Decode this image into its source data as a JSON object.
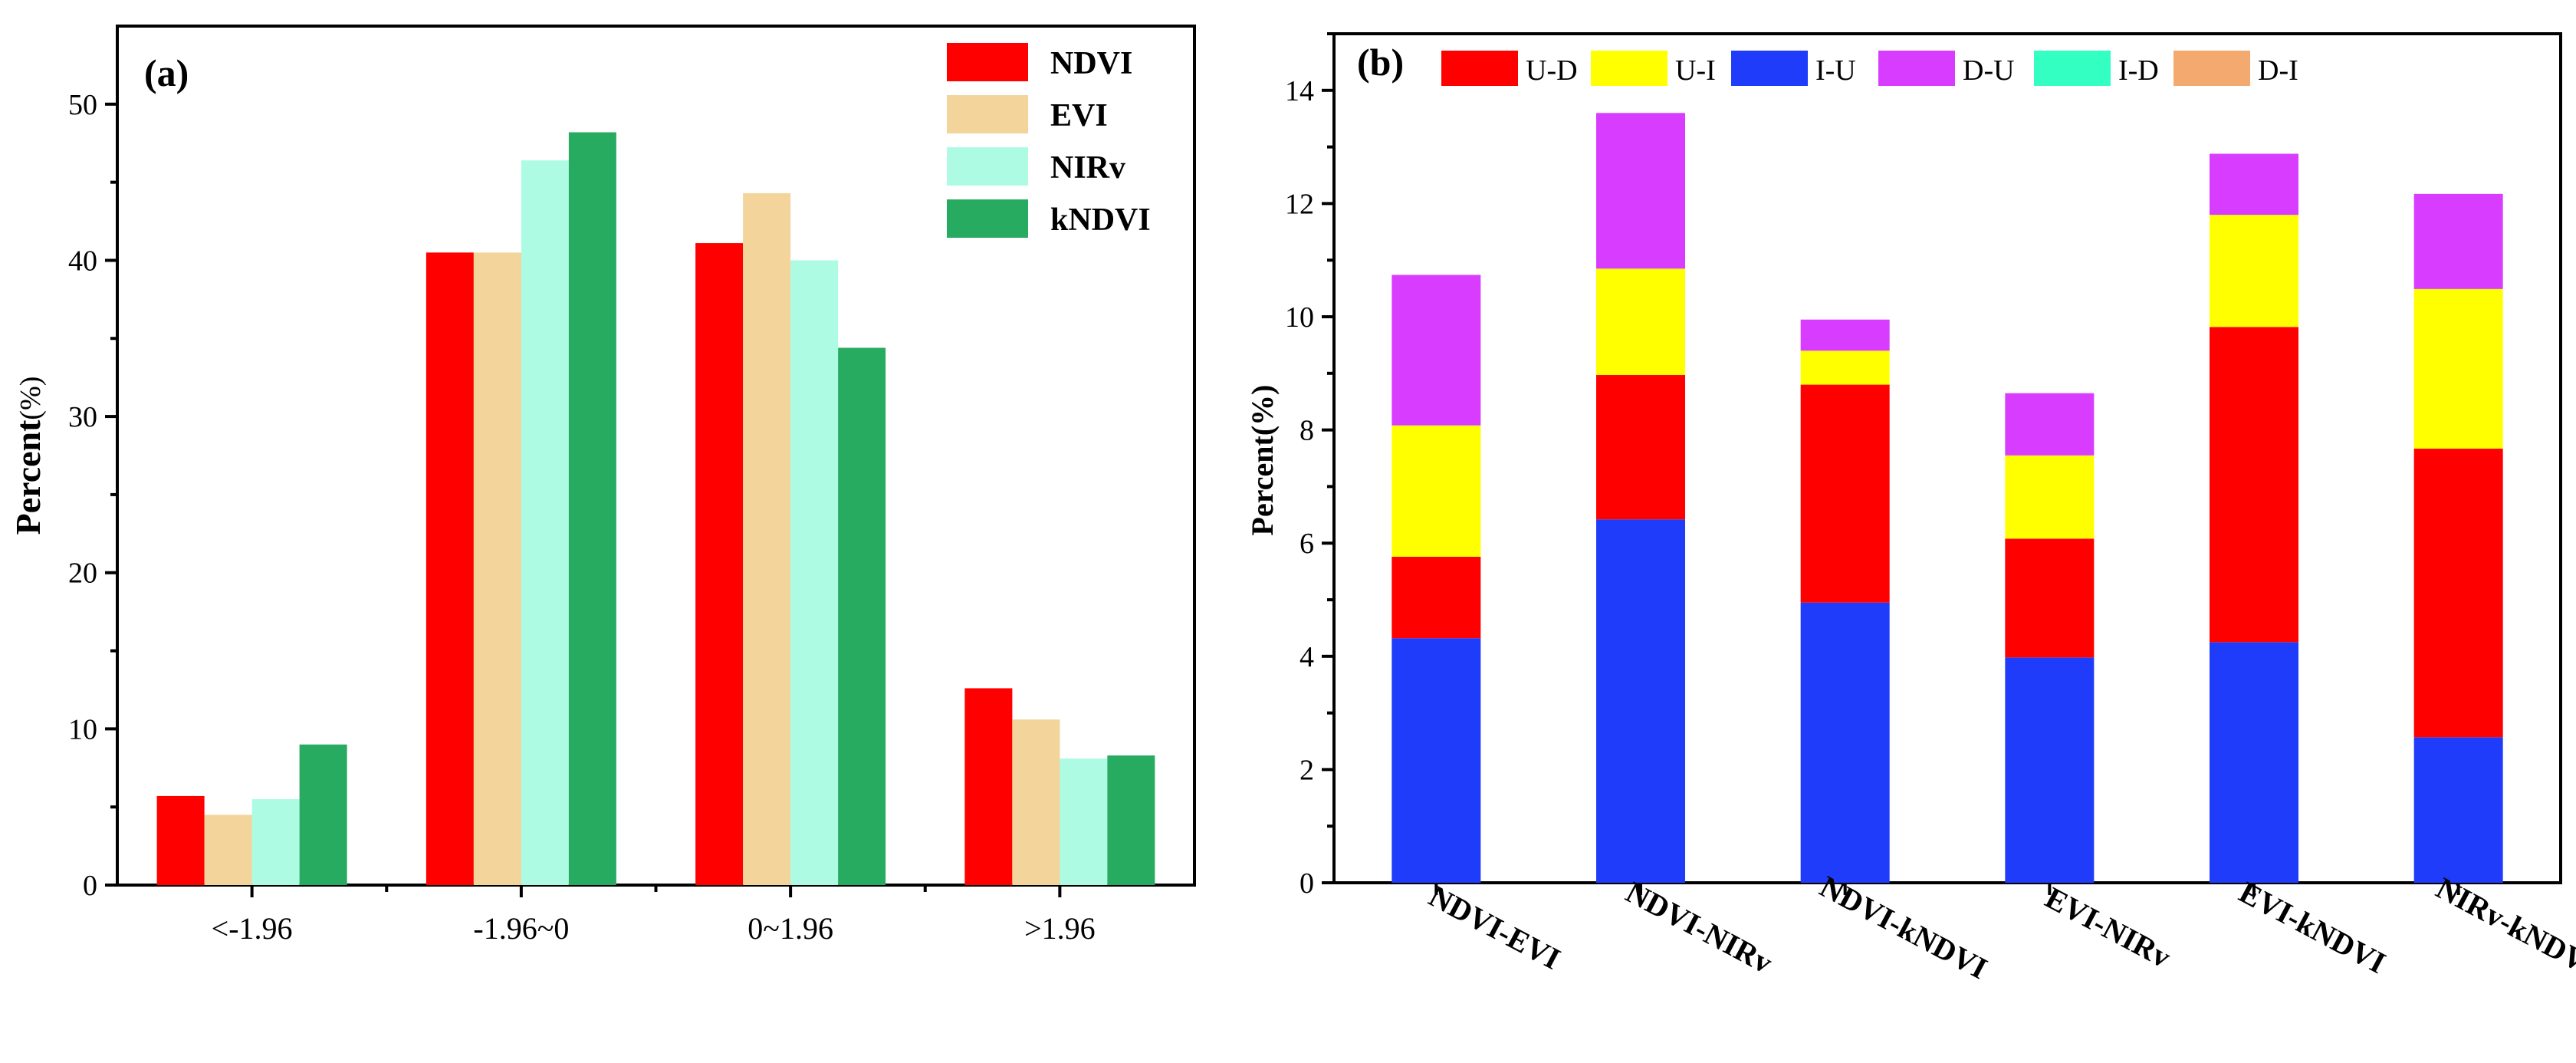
{
  "chart_data": [
    {
      "type": "bar",
      "panel_label": "(a)",
      "ylabel": "Percent",
      "ylabel_unit": "(%)",
      "xlabel": "",
      "ylim": [
        0,
        55
      ],
      "yticks": [
        "0",
        "10",
        "20",
        "30",
        "40",
        "50"
      ],
      "categories": [
        "<-1.96",
        "-1.96~0",
        "0~1.96",
        ">1.96"
      ],
      "legend_position": "top-right",
      "series": [
        {
          "name": "NDVI",
          "color": "#ff0000",
          "values": [
            5.7,
            40.5,
            41.1,
            12.6
          ]
        },
        {
          "name": "EVI",
          "color": "#f3d49b",
          "values": [
            4.5,
            40.5,
            44.3,
            10.6
          ]
        },
        {
          "name": "NIRv",
          "color": "#adfbe3",
          "values": [
            5.5,
            46.4,
            40.0,
            8.1
          ]
        },
        {
          "name": "kNDVI",
          "color": "#26ab60",
          "values": [
            9.0,
            48.2,
            34.4,
            8.3
          ]
        }
      ]
    },
    {
      "type": "bar",
      "stacked": true,
      "panel_label": "(b)",
      "ylabel": "Percent(%)",
      "xlabel": "",
      "ylim": [
        0,
        15
      ],
      "yticks": [
        "0",
        "2",
        "4",
        "6",
        "8",
        "10",
        "12",
        "14"
      ],
      "categories": [
        "NDVI-EVI",
        "NDVI-NIRv",
        "NDVI-kNDVI",
        "EVI-NIRv",
        "EVI-kNDVI",
        "NIRv-kNDVI"
      ],
      "legend_position": "top",
      "legend": [
        {
          "name": "U-D",
          "color": "#ff0000"
        },
        {
          "name": "U-I",
          "color": "#ffff00"
        },
        {
          "name": "I-U",
          "color": "#1f3cfa"
        },
        {
          "name": "D-U",
          "color": "#d83dff"
        },
        {
          "name": "I-D",
          "color": "#33ffc2"
        },
        {
          "name": "D-I",
          "color": "#f4a96e"
        }
      ],
      "stack_order": [
        "I-U",
        "U-D",
        "U-I",
        "D-U"
      ],
      "series": [
        {
          "name": "I-U",
          "color": "#1f3cfa",
          "values": [
            4.32,
            6.42,
            4.95,
            3.98,
            4.25,
            2.57
          ]
        },
        {
          "name": "U-D",
          "color": "#ff0000",
          "values": [
            1.44,
            2.55,
            3.85,
            2.1,
            5.57,
            5.1
          ]
        },
        {
          "name": "U-I",
          "color": "#ffff00",
          "values": [
            2.32,
            1.88,
            0.6,
            1.47,
            1.98,
            2.82
          ]
        },
        {
          "name": "D-U",
          "color": "#d83dff",
          "values": [
            2.66,
            2.75,
            0.55,
            1.1,
            1.08,
            1.68
          ]
        },
        {
          "name": "I-D",
          "color": "#33ffc2",
          "values": [
            0,
            0,
            0,
            0,
            0,
            0
          ]
        },
        {
          "name": "D-I",
          "color": "#f4a96e",
          "values": [
            0,
            0,
            0,
            0,
            0,
            0
          ]
        }
      ]
    }
  ]
}
